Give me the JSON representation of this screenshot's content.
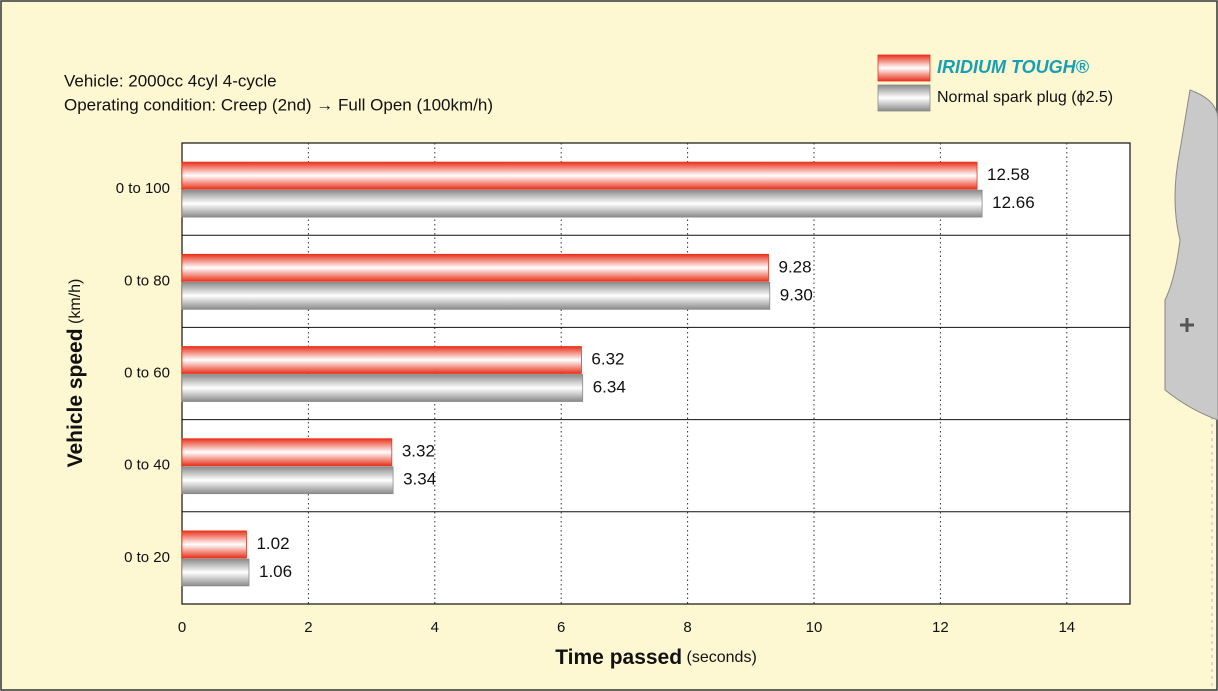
{
  "chart_data": {
    "type": "hbar",
    "subtitle_lines": [
      "Vehicle: 2000cc  4cyl  4-cycle",
      "Operating condition: Creep (2nd) → Full Open (100km/h)"
    ],
    "x_label": {
      "text": "Time passed",
      "unit": "(seconds)"
    },
    "y_label": {
      "text": "Vehicle speed",
      "unit": "(km/h)"
    },
    "categories": [
      "0 to 100",
      "0 to 80",
      "0 to 60",
      "0 to 40",
      "0 to 20"
    ],
    "series": [
      {
        "name": "IRIDIUM TOUGH®",
        "color": "#e8321c",
        "values": [
          12.58,
          9.28,
          6.32,
          3.32,
          1.02
        ],
        "value_labels": [
          "12.58",
          "9.28",
          "6.32",
          "3.32",
          "1.02"
        ]
      },
      {
        "name": "Normal spark plug (ϕ2.5)",
        "color": "#8a8a8a",
        "values": [
          12.66,
          9.3,
          6.34,
          3.34,
          1.06
        ],
        "value_labels": [
          "12.66",
          "9.30",
          "6.34",
          "3.34",
          "1.06"
        ]
      }
    ],
    "xlim": [
      0,
      15
    ],
    "xticks": [
      0,
      2,
      4,
      6,
      8,
      10,
      12,
      14
    ],
    "grid": true
  }
}
